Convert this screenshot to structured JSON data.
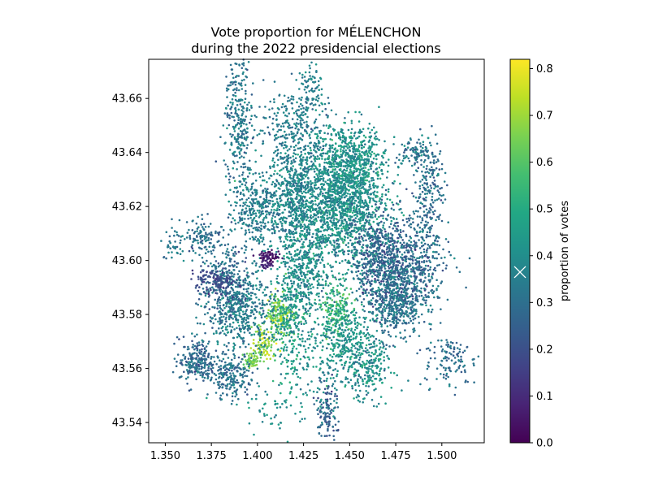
{
  "chart_data": {
    "type": "scatter",
    "title_line1": "Vote proportion for MÉLENCHON",
    "title_line2": "during the 2022 presidencial elections",
    "xlabel": "",
    "ylabel": "",
    "xlim": [
      1.341,
      1.523
    ],
    "ylim": [
      43.5325,
      43.6745
    ],
    "x_ticks": [
      1.35,
      1.375,
      1.4,
      1.425,
      1.45,
      1.475,
      1.5
    ],
    "x_tick_labels": [
      "1.350",
      "1.375",
      "1.400",
      "1.425",
      "1.450",
      "1.475",
      "1.500"
    ],
    "y_ticks": [
      43.54,
      43.56,
      43.58,
      43.6,
      43.62,
      43.64,
      43.66
    ],
    "y_tick_labels": [
      "43.54",
      "43.56",
      "43.58",
      "43.60",
      "43.62",
      "43.64",
      "43.66"
    ],
    "colorbar": {
      "label": "proportion of votes",
      "colormap": "viridis",
      "range": [
        0.0,
        0.82
      ],
      "ticks": [
        0.0,
        0.1,
        0.2,
        0.3,
        0.4,
        0.5,
        0.6,
        0.7,
        0.8
      ],
      "tick_labels": [
        "0.0",
        "0.1",
        "0.2",
        "0.3",
        "0.4",
        "0.5",
        "0.6",
        "0.7",
        "0.8"
      ],
      "cursor_marker_value": 0.365
    },
    "clusters": [
      {
        "x": 1.445,
        "y": 43.62,
        "sx": 0.012,
        "sy": 0.012,
        "n": 1400,
        "v": 0.4,
        "vs": 0.06
      },
      {
        "x": 1.47,
        "y": 43.6,
        "sx": 0.009,
        "sy": 0.008,
        "n": 800,
        "v": 0.27,
        "vs": 0.07
      },
      {
        "x": 1.475,
        "y": 43.585,
        "sx": 0.008,
        "sy": 0.006,
        "n": 500,
        "v": 0.31,
        "vs": 0.06
      },
      {
        "x": 1.45,
        "y": 43.635,
        "sx": 0.01,
        "sy": 0.008,
        "n": 600,
        "v": 0.42,
        "vs": 0.05
      },
      {
        "x": 1.42,
        "y": 43.625,
        "sx": 0.008,
        "sy": 0.01,
        "n": 600,
        "v": 0.37,
        "vs": 0.05
      },
      {
        "x": 1.4,
        "y": 43.618,
        "sx": 0.007,
        "sy": 0.006,
        "n": 300,
        "v": 0.35,
        "vs": 0.05
      },
      {
        "x": 1.425,
        "y": 43.595,
        "sx": 0.006,
        "sy": 0.01,
        "n": 400,
        "v": 0.4,
        "vs": 0.06
      },
      {
        "x": 1.412,
        "y": 43.58,
        "sx": 0.004,
        "sy": 0.004,
        "n": 160,
        "v": 0.64,
        "vs": 0.07
      },
      {
        "x": 1.417,
        "y": 43.576,
        "sx": 0.004,
        "sy": 0.012,
        "n": 250,
        "v": 0.45,
        "vs": 0.06
      },
      {
        "x": 1.403,
        "y": 43.569,
        "sx": 0.003,
        "sy": 0.003,
        "n": 90,
        "v": 0.7,
        "vs": 0.06
      },
      {
        "x": 1.397,
        "y": 43.563,
        "sx": 0.0025,
        "sy": 0.0015,
        "n": 60,
        "v": 0.65,
        "vs": 0.03
      },
      {
        "x": 1.443,
        "y": 43.581,
        "sx": 0.004,
        "sy": 0.005,
        "n": 160,
        "v": 0.55,
        "vs": 0.05
      },
      {
        "x": 1.448,
        "y": 43.57,
        "sx": 0.007,
        "sy": 0.007,
        "n": 300,
        "v": 0.42,
        "vs": 0.05
      },
      {
        "x": 1.392,
        "y": 43.582,
        "sx": 0.009,
        "sy": 0.008,
        "n": 450,
        "v": 0.35,
        "vs": 0.05
      },
      {
        "x": 1.383,
        "y": 43.59,
        "sx": 0.007,
        "sy": 0.007,
        "n": 300,
        "v": 0.28,
        "vs": 0.06
      },
      {
        "x": 1.367,
        "y": 43.563,
        "sx": 0.005,
        "sy": 0.004,
        "n": 220,
        "v": 0.29,
        "vs": 0.05
      },
      {
        "x": 1.385,
        "y": 43.557,
        "sx": 0.006,
        "sy": 0.004,
        "n": 220,
        "v": 0.3,
        "vs": 0.05
      },
      {
        "x": 1.407,
        "y": 43.6015,
        "sx": 0.003,
        "sy": 0.0012,
        "n": 60,
        "v": 0.05,
        "vs": 0.03
      },
      {
        "x": 1.405,
        "y": 43.5985,
        "sx": 0.0015,
        "sy": 0.0008,
        "n": 25,
        "v": 0.1,
        "vs": 0.02
      },
      {
        "x": 1.376,
        "y": 43.593,
        "sx": 0.006,
        "sy": 0.002,
        "n": 100,
        "v": 0.18,
        "vs": 0.03
      },
      {
        "x": 1.39,
        "y": 43.65,
        "sx": 0.004,
        "sy": 0.014,
        "n": 300,
        "v": 0.33,
        "vs": 0.05
      },
      {
        "x": 1.42,
        "y": 43.65,
        "sx": 0.01,
        "sy": 0.008,
        "n": 250,
        "v": 0.34,
        "vs": 0.05
      },
      {
        "x": 1.493,
        "y": 43.628,
        "sx": 0.004,
        "sy": 0.009,
        "n": 200,
        "v": 0.31,
        "vs": 0.05
      },
      {
        "x": 1.438,
        "y": 43.545,
        "sx": 0.003,
        "sy": 0.006,
        "n": 120,
        "v": 0.25,
        "vs": 0.06
      },
      {
        "x": 1.46,
        "y": 43.56,
        "sx": 0.006,
        "sy": 0.006,
        "n": 200,
        "v": 0.4,
        "vs": 0.06
      },
      {
        "x": 1.505,
        "y": 43.563,
        "sx": 0.007,
        "sy": 0.005,
        "n": 120,
        "v": 0.3,
        "vs": 0.05
      },
      {
        "x": 1.371,
        "y": 43.609,
        "sx": 0.006,
        "sy": 0.003,
        "n": 120,
        "v": 0.3,
        "vs": 0.05
      },
      {
        "x": 1.433,
        "y": 43.56,
        "sx": 0.008,
        "sy": 0.008,
        "n": 100,
        "v": 0.4,
        "vs": 0.05
      },
      {
        "x": 1.49,
        "y": 43.6,
        "sx": 0.007,
        "sy": 0.01,
        "n": 250,
        "v": 0.3,
        "vs": 0.05
      },
      {
        "x": 1.41,
        "y": 43.545,
        "sx": 0.01,
        "sy": 0.004,
        "n": 50,
        "v": 0.4,
        "vs": 0.04
      },
      {
        "x": 1.355,
        "y": 43.605,
        "sx": 0.003,
        "sy": 0.004,
        "n": 40,
        "v": 0.33,
        "vs": 0.05
      },
      {
        "x": 1.43,
        "y": 43.663,
        "sx": 0.003,
        "sy": 0.005,
        "n": 70,
        "v": 0.35,
        "vs": 0.05
      },
      {
        "x": 1.485,
        "y": 43.64,
        "sx": 0.004,
        "sy": 0.003,
        "n": 70,
        "v": 0.32,
        "vs": 0.05
      }
    ]
  }
}
